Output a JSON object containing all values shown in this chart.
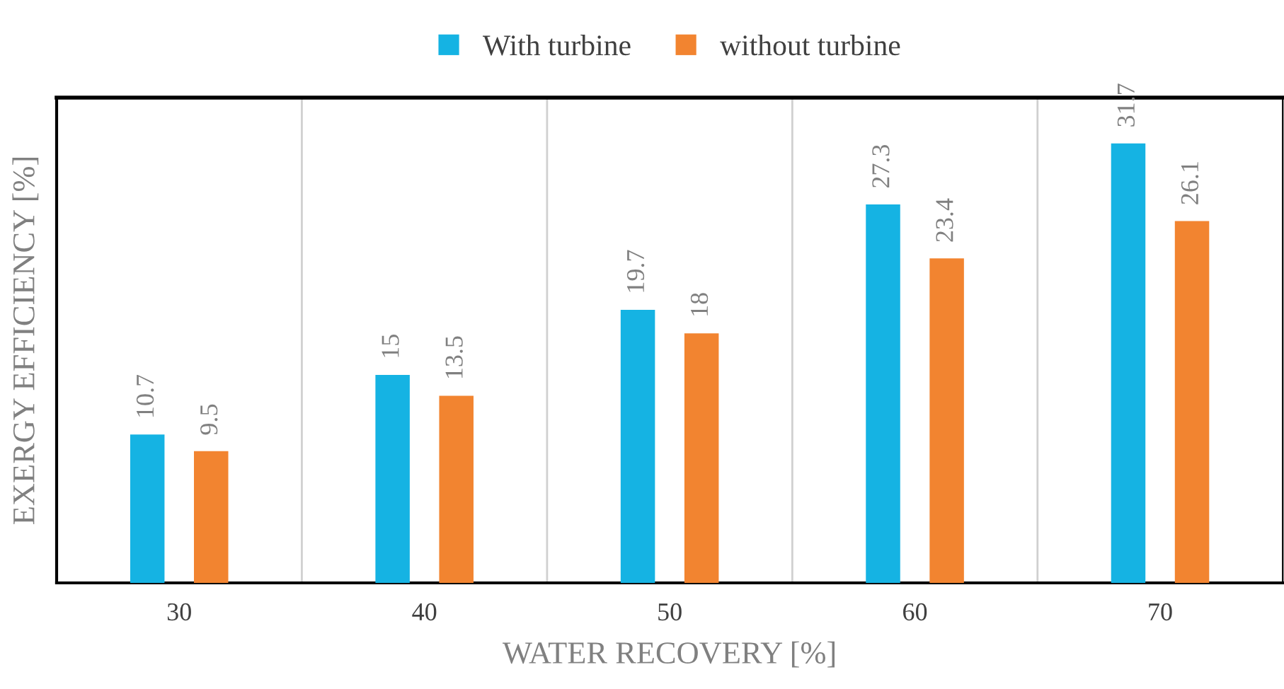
{
  "chart_data": {
    "type": "bar",
    "xlabel": "WATER RECOVERY [%]",
    "ylabel": "EXERGY EFFICIENCY [%]",
    "categories": [
      "30",
      "40",
      "50",
      "60",
      "70"
    ],
    "series": [
      {
        "name": "With turbine",
        "color": "#15b3e3",
        "values": [
          10.7,
          15,
          19.7,
          27.3,
          31.7
        ]
      },
      {
        "name": "without turbine",
        "color": "#f28430",
        "values": [
          9.5,
          13.5,
          18,
          23.4,
          26.1
        ]
      }
    ],
    "ylim": [
      0,
      35
    ],
    "tick_labels": "x",
    "data_labels": true,
    "grid": "x",
    "legend": "top"
  }
}
